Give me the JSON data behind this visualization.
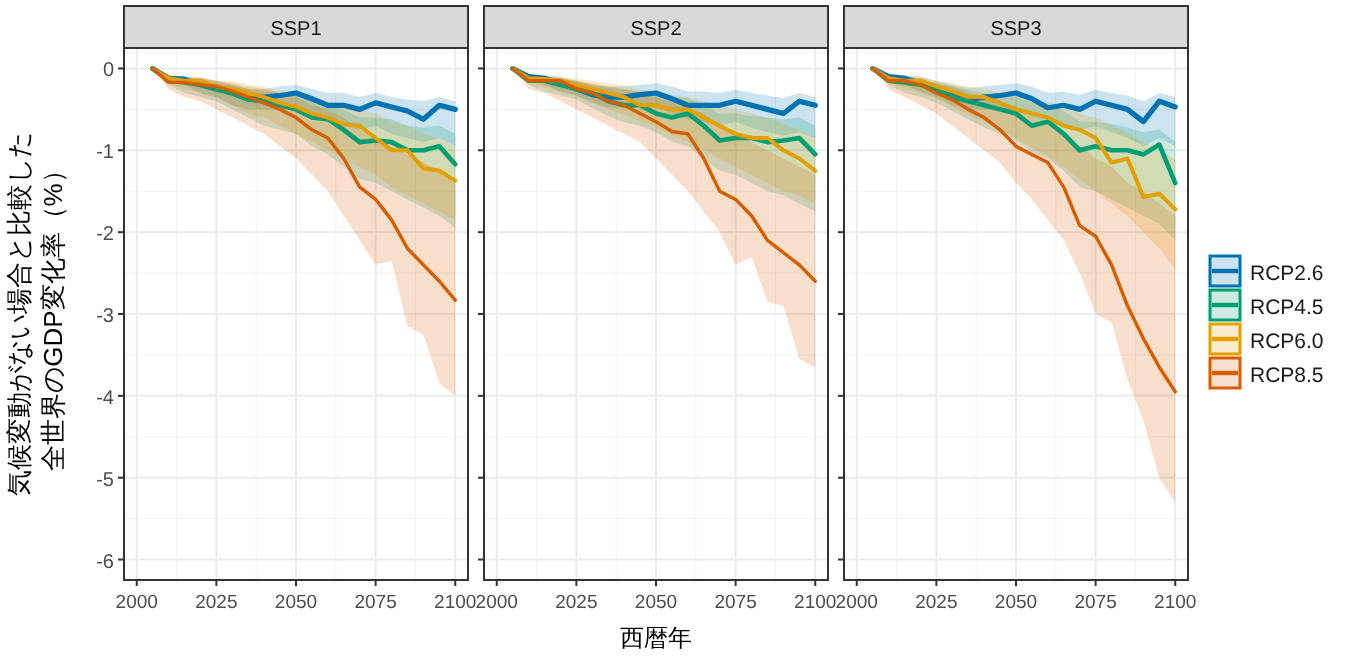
{
  "chart_data": [
    {
      "type": "line",
      "title": "SSP1",
      "ylabel": "気候変動がない場合と比較した全世界のGDP変化率（%）",
      "xlim": [
        1996,
        2104
      ],
      "ylim": [
        -6.25,
        0.25
      ],
      "xticks": [
        2000,
        2025,
        2050,
        2075,
        2100
      ],
      "yticks": [
        -6,
        -5,
        -4,
        -3,
        -2,
        -1,
        0
      ],
      "grid": true,
      "legend": false,
      "x": [
        2005,
        2010,
        2015,
        2020,
        2025,
        2030,
        2035,
        2040,
        2045,
        2050,
        2055,
        2060,
        2065,
        2070,
        2075,
        2080,
        2085,
        2090,
        2095,
        2100
      ],
      "series": [
        {
          "color": "#0072b2",
          "values": [
            0,
            -0.12,
            -0.13,
            -0.2,
            -0.25,
            -0.3,
            -0.37,
            -0.35,
            -0.33,
            -0.3,
            -0.37,
            -0.45,
            -0.45,
            -0.5,
            -0.42,
            -0.47,
            -0.52,
            -0.62,
            -0.45,
            -0.5
          ],
          "lower": [
            0,
            -0.15,
            -0.2,
            -0.3,
            -0.35,
            -0.45,
            -0.5,
            -0.5,
            -0.5,
            -0.5,
            -0.6,
            -0.65,
            -0.7,
            -0.75,
            -0.7,
            -0.8,
            -0.85,
            -0.9,
            -0.85,
            -0.95
          ],
          "upper": [
            0,
            -0.08,
            -0.1,
            -0.12,
            -0.15,
            -0.2,
            -0.25,
            -0.25,
            -0.22,
            -0.2,
            -0.25,
            -0.3,
            -0.3,
            -0.35,
            -0.3,
            -0.35,
            -0.38,
            -0.4,
            -0.35,
            -0.4
          ]
        },
        {
          "color": "#009e73",
          "values": [
            0,
            -0.15,
            -0.17,
            -0.2,
            -0.25,
            -0.3,
            -0.38,
            -0.4,
            -0.45,
            -0.5,
            -0.6,
            -0.62,
            -0.75,
            -0.9,
            -0.88,
            -0.9,
            -1.0,
            -1.0,
            -0.95,
            -1.17
          ],
          "lower": [
            0,
            -0.2,
            -0.3,
            -0.35,
            -0.4,
            -0.5,
            -0.6,
            -0.7,
            -0.75,
            -0.8,
            -0.95,
            -1.05,
            -1.2,
            -1.35,
            -1.4,
            -1.5,
            -1.6,
            -1.7,
            -1.8,
            -1.95
          ],
          "upper": [
            0,
            -0.1,
            -0.12,
            -0.15,
            -0.18,
            -0.2,
            -0.25,
            -0.28,
            -0.3,
            -0.32,
            -0.4,
            -0.42,
            -0.5,
            -0.6,
            -0.6,
            -0.62,
            -0.7,
            -0.72,
            -0.7,
            -0.8
          ]
        },
        {
          "color": "#e69f00",
          "values": [
            0,
            -0.12,
            -0.15,
            -0.15,
            -0.22,
            -0.25,
            -0.3,
            -0.35,
            -0.42,
            -0.47,
            -0.55,
            -0.6,
            -0.68,
            -0.7,
            -0.85,
            -1.0,
            -1.0,
            -1.22,
            -1.25,
            -1.37
          ],
          "lower": [
            0,
            -0.18,
            -0.25,
            -0.3,
            -0.35,
            -0.45,
            -0.55,
            -0.6,
            -0.7,
            -0.8,
            -0.9,
            -1.0,
            -1.1,
            -1.2,
            -1.3,
            -1.45,
            -1.55,
            -1.65,
            -1.75,
            -1.85
          ],
          "upper": [
            0,
            -0.08,
            -0.1,
            -0.1,
            -0.15,
            -0.15,
            -0.2,
            -0.22,
            -0.28,
            -0.3,
            -0.35,
            -0.4,
            -0.45,
            -0.5,
            -0.55,
            -0.65,
            -0.7,
            -0.8,
            -0.85,
            -0.95
          ]
        },
        {
          "color": "#d55e00",
          "values": [
            0,
            -0.17,
            -0.17,
            -0.2,
            -0.22,
            -0.28,
            -0.35,
            -0.42,
            -0.5,
            -0.6,
            -0.75,
            -0.85,
            -1.1,
            -1.45,
            -1.6,
            -1.85,
            -2.2,
            -2.4,
            -2.6,
            -2.83
          ],
          "lower": [
            0,
            -0.25,
            -0.35,
            -0.4,
            -0.5,
            -0.6,
            -0.7,
            -0.8,
            -0.95,
            -1.1,
            -1.3,
            -1.5,
            -1.8,
            -2.1,
            -2.4,
            -2.35,
            -3.15,
            -3.25,
            -3.85,
            -4.0
          ],
          "upper": [
            0,
            -0.1,
            -0.12,
            -0.12,
            -0.15,
            -0.18,
            -0.22,
            -0.25,
            -0.3,
            -0.35,
            -0.45,
            -0.5,
            -0.6,
            -0.75,
            -0.85,
            -0.95,
            -1.05,
            -1.15,
            -1.25,
            -1.35
          ]
        }
      ]
    },
    {
      "type": "line",
      "title": "SSP2",
      "xlabel": "西暦年",
      "xlim": [
        1996,
        2104
      ],
      "ylim": [
        -6.25,
        0.25
      ],
      "xticks": [
        2000,
        2025,
        2050,
        2075,
        2100
      ],
      "yticks": [
        -6,
        -5,
        -4,
        -3,
        -2,
        -1,
        0
      ],
      "grid": true,
      "legend": false,
      "tick_labels": "x",
      "x": [
        2005,
        2010,
        2015,
        2020,
        2025,
        2030,
        2035,
        2040,
        2045,
        2050,
        2055,
        2060,
        2065,
        2070,
        2075,
        2080,
        2085,
        2090,
        2095,
        2100
      ],
      "series": [
        {
          "color": "#0072b2",
          "values": [
            0,
            -0.1,
            -0.12,
            -0.18,
            -0.25,
            -0.32,
            -0.35,
            -0.35,
            -0.32,
            -0.3,
            -0.37,
            -0.45,
            -0.45,
            -0.45,
            -0.4,
            -0.45,
            -0.5,
            -0.55,
            -0.4,
            -0.45
          ],
          "lower": [
            0,
            -0.15,
            -0.2,
            -0.28,
            -0.33,
            -0.42,
            -0.48,
            -0.48,
            -0.48,
            -0.48,
            -0.55,
            -0.62,
            -0.65,
            -0.7,
            -0.65,
            -0.72,
            -0.78,
            -0.82,
            -0.78,
            -0.85
          ],
          "upper": [
            0,
            -0.07,
            -0.08,
            -0.1,
            -0.15,
            -0.2,
            -0.22,
            -0.22,
            -0.2,
            -0.18,
            -0.22,
            -0.28,
            -0.28,
            -0.3,
            -0.26,
            -0.3,
            -0.33,
            -0.36,
            -0.3,
            -0.35
          ]
        },
        {
          "color": "#009e73",
          "values": [
            0,
            -0.15,
            -0.15,
            -0.2,
            -0.25,
            -0.3,
            -0.4,
            -0.45,
            -0.45,
            -0.55,
            -0.6,
            -0.55,
            -0.7,
            -0.88,
            -0.85,
            -0.85,
            -0.9,
            -0.88,
            -0.85,
            -1.05
          ],
          "lower": [
            0,
            -0.2,
            -0.28,
            -0.33,
            -0.38,
            -0.48,
            -0.58,
            -0.66,
            -0.7,
            -0.78,
            -0.9,
            -0.95,
            -1.1,
            -1.25,
            -1.3,
            -1.4,
            -1.5,
            -1.55,
            -1.65,
            -1.75
          ],
          "upper": [
            0,
            -0.1,
            -0.1,
            -0.13,
            -0.16,
            -0.2,
            -0.24,
            -0.26,
            -0.28,
            -0.3,
            -0.35,
            -0.36,
            -0.45,
            -0.55,
            -0.55,
            -0.58,
            -0.6,
            -0.62,
            -0.6,
            -0.7
          ]
        },
        {
          "color": "#e69f00",
          "values": [
            0,
            -0.12,
            -0.13,
            -0.15,
            -0.2,
            -0.25,
            -0.3,
            -0.35,
            -0.45,
            -0.45,
            -0.5,
            -0.5,
            -0.6,
            -0.7,
            -0.8,
            -0.85,
            -0.85,
            -1.0,
            -1.1,
            -1.25
          ],
          "lower": [
            0,
            -0.17,
            -0.22,
            -0.28,
            -0.33,
            -0.42,
            -0.5,
            -0.56,
            -0.65,
            -0.72,
            -0.82,
            -0.9,
            -1.0,
            -1.1,
            -1.2,
            -1.3,
            -1.4,
            -1.5,
            -1.55,
            -1.65
          ],
          "upper": [
            0,
            -0.08,
            -0.1,
            -0.1,
            -0.13,
            -0.15,
            -0.18,
            -0.2,
            -0.26,
            -0.28,
            -0.32,
            -0.35,
            -0.4,
            -0.45,
            -0.5,
            -0.55,
            -0.6,
            -0.68,
            -0.75,
            -0.85
          ]
        },
        {
          "color": "#d55e00",
          "values": [
            0,
            -0.15,
            -0.15,
            -0.15,
            -0.25,
            -0.3,
            -0.4,
            -0.45,
            -0.55,
            -0.65,
            -0.77,
            -0.8,
            -1.1,
            -1.5,
            -1.6,
            -1.8,
            -2.1,
            -2.25,
            -2.4,
            -2.6
          ],
          "lower": [
            0,
            -0.25,
            -0.3,
            -0.4,
            -0.5,
            -0.6,
            -0.7,
            -0.8,
            -0.9,
            -1.1,
            -1.3,
            -1.5,
            -1.75,
            -2.0,
            -2.4,
            -2.3,
            -2.85,
            -2.9,
            -3.55,
            -3.65
          ],
          "upper": [
            0,
            -0.1,
            -0.1,
            -0.12,
            -0.15,
            -0.18,
            -0.22,
            -0.25,
            -0.3,
            -0.35,
            -0.42,
            -0.48,
            -0.55,
            -0.7,
            -0.8,
            -0.9,
            -1.0,
            -1.1,
            -1.2,
            -1.3
          ]
        }
      ]
    },
    {
      "type": "line",
      "title": "SSP3",
      "xlim": [
        1996,
        2104
      ],
      "ylim": [
        -6.25,
        0.25
      ],
      "xticks": [
        2000,
        2025,
        2050,
        2075,
        2100
      ],
      "yticks": [
        -6,
        -5,
        -4,
        -3,
        -2,
        -1,
        0
      ],
      "grid": true,
      "legend": "right",
      "tick_labels": "x",
      "x": [
        2005,
        2010,
        2015,
        2020,
        2025,
        2030,
        2035,
        2040,
        2045,
        2050,
        2055,
        2060,
        2065,
        2070,
        2075,
        2080,
        2085,
        2090,
        2095,
        2100
      ],
      "series": [
        {
          "name": "RCP2.6",
          "color": "#0072b2",
          "values": [
            0,
            -0.1,
            -0.12,
            -0.18,
            -0.25,
            -0.32,
            -0.38,
            -0.35,
            -0.33,
            -0.3,
            -0.37,
            -0.48,
            -0.45,
            -0.5,
            -0.4,
            -0.45,
            -0.5,
            -0.65,
            -0.4,
            -0.47
          ],
          "lower": [
            0,
            -0.15,
            -0.2,
            -0.28,
            -0.35,
            -0.45,
            -0.5,
            -0.5,
            -0.5,
            -0.5,
            -0.6,
            -0.68,
            -0.7,
            -0.75,
            -0.7,
            -0.78,
            -0.85,
            -0.95,
            -0.85,
            -0.95
          ],
          "upper": [
            0,
            -0.07,
            -0.08,
            -0.1,
            -0.15,
            -0.2,
            -0.24,
            -0.22,
            -0.2,
            -0.18,
            -0.22,
            -0.3,
            -0.28,
            -0.32,
            -0.26,
            -0.3,
            -0.33,
            -0.4,
            -0.3,
            -0.35
          ]
        },
        {
          "name": "RCP4.5",
          "color": "#009e73",
          "values": [
            0,
            -0.15,
            -0.17,
            -0.2,
            -0.25,
            -0.35,
            -0.4,
            -0.45,
            -0.5,
            -0.55,
            -0.7,
            -0.65,
            -0.8,
            -1.0,
            -0.95,
            -1.0,
            -1.0,
            -1.05,
            -0.93,
            -1.4
          ],
          "lower": [
            0,
            -0.2,
            -0.3,
            -0.35,
            -0.42,
            -0.52,
            -0.62,
            -0.72,
            -0.8,
            -0.88,
            -1.02,
            -1.1,
            -1.25,
            -1.45,
            -1.5,
            -1.6,
            -1.7,
            -1.8,
            -1.9,
            -2.1
          ],
          "upper": [
            0,
            -0.1,
            -0.12,
            -0.15,
            -0.18,
            -0.22,
            -0.26,
            -0.3,
            -0.32,
            -0.35,
            -0.42,
            -0.45,
            -0.52,
            -0.65,
            -0.65,
            -0.68,
            -0.72,
            -0.78,
            -0.75,
            -0.9
          ]
        },
        {
          "name": "RCP6.0",
          "color": "#e69f00",
          "values": [
            0,
            -0.12,
            -0.15,
            -0.15,
            -0.22,
            -0.28,
            -0.35,
            -0.35,
            -0.42,
            -0.5,
            -0.55,
            -0.6,
            -0.7,
            -0.75,
            -0.85,
            -1.15,
            -1.1,
            -1.57,
            -1.53,
            -1.72
          ],
          "lower": [
            0,
            -0.18,
            -0.25,
            -0.3,
            -0.37,
            -0.47,
            -0.57,
            -0.65,
            -0.75,
            -0.85,
            -0.97,
            -1.07,
            -1.2,
            -1.35,
            -1.5,
            -1.65,
            -1.8,
            -2.0,
            -2.2,
            -2.45
          ],
          "upper": [
            0,
            -0.08,
            -0.1,
            -0.1,
            -0.15,
            -0.17,
            -0.22,
            -0.25,
            -0.3,
            -0.33,
            -0.38,
            -0.42,
            -0.48,
            -0.55,
            -0.6,
            -0.7,
            -0.78,
            -0.9,
            -1.0,
            -1.1
          ]
        },
        {
          "name": "RCP8.5",
          "color": "#d55e00",
          "values": [
            0,
            -0.15,
            -0.15,
            -0.2,
            -0.3,
            -0.38,
            -0.5,
            -0.6,
            -0.75,
            -0.95,
            -1.05,
            -1.15,
            -1.45,
            -1.92,
            -2.05,
            -2.4,
            -2.9,
            -3.3,
            -3.65,
            -3.95
          ],
          "lower": [
            0,
            -0.25,
            -0.35,
            -0.45,
            -0.55,
            -0.7,
            -0.85,
            -1.0,
            -1.15,
            -1.4,
            -1.6,
            -1.85,
            -2.1,
            -2.5,
            -3.0,
            -3.1,
            -3.8,
            -4.3,
            -5.0,
            -5.3
          ],
          "upper": [
            0,
            -0.1,
            -0.1,
            -0.12,
            -0.18,
            -0.22,
            -0.3,
            -0.35,
            -0.42,
            -0.5,
            -0.6,
            -0.7,
            -0.8,
            -0.95,
            -1.1,
            -1.2,
            -1.4,
            -1.5,
            -1.65,
            -1.8
          ]
        }
      ]
    }
  ]
}
